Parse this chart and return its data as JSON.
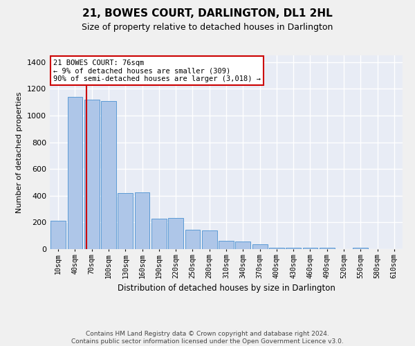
{
  "title": "21, BOWES COURT, DARLINGTON, DL1 2HL",
  "subtitle": "Size of property relative to detached houses in Darlington",
  "xlabel": "Distribution of detached houses by size in Darlington",
  "ylabel": "Number of detached properties",
  "bar_labels": [
    "10sqm",
    "40sqm",
    "70sqm",
    "100sqm",
    "130sqm",
    "160sqm",
    "190sqm",
    "220sqm",
    "250sqm",
    "280sqm",
    "310sqm",
    "340sqm",
    "370sqm",
    "400sqm",
    "430sqm",
    "460sqm",
    "490sqm",
    "520sqm",
    "550sqm",
    "580sqm",
    "610sqm"
  ],
  "bar_values": [
    210,
    1140,
    1120,
    1110,
    420,
    425,
    230,
    232,
    145,
    140,
    60,
    58,
    35,
    10,
    10,
    10,
    10,
    0,
    12,
    0,
    0
  ],
  "bar_color": "#aec6e8",
  "bar_edge_color": "#5b9bd5",
  "background_color": "#e8ecf5",
  "grid_color": "#ffffff",
  "vline_color": "#cc0000",
  "annotation_text": "21 BOWES COURT: 76sqm\n← 9% of detached houses are smaller (309)\n90% of semi-detached houses are larger (3,018) →",
  "annotation_box_color": "#ffffff",
  "annotation_box_edge": "#cc0000",
  "ylim": [
    0,
    1450
  ],
  "yticks": [
    0,
    200,
    400,
    600,
    800,
    1000,
    1200,
    1400
  ],
  "fig_bg": "#f0f0f0",
  "footer": "Contains HM Land Registry data © Crown copyright and database right 2024.\nContains public sector information licensed under the Open Government Licence v3.0."
}
